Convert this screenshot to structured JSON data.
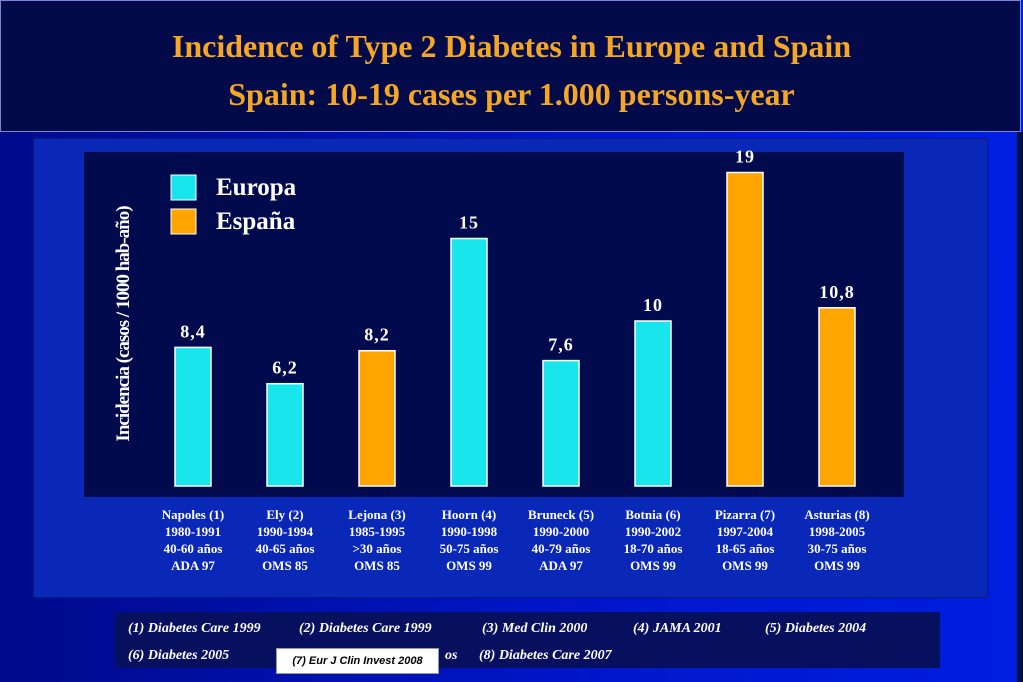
{
  "header": {
    "title_line1": "Incidence of Type 2 Diabetes in Europe and Spain",
    "title_line2": "Spain: 10-19 cases per 1.000 persons-year"
  },
  "chart_data": {
    "type": "bar",
    "ylabel": "Incidencia (casos / 1000 hab-año)",
    "ylim": [
      0,
      20
    ],
    "grid": false,
    "legend_position": "top-left",
    "series": [
      {
        "name": "Europa",
        "color": "#18e6ec"
      },
      {
        "name": "España",
        "color": "#ffa500"
      }
    ],
    "bars": [
      {
        "value": 8.4,
        "label": "8,4",
        "series": "Europa",
        "category": [
          "Napoles (1)",
          "1980-1991",
          "40-60 años",
          "ADA 97"
        ]
      },
      {
        "value": 6.2,
        "label": "6,2",
        "series": "Europa",
        "category": [
          "Ely (2)",
          "1990-1994",
          "40-65 años",
          "OMS 85"
        ]
      },
      {
        "value": 8.2,
        "label": "8,2",
        "series": "España",
        "category": [
          "Lejona (3)",
          "1985-1995",
          ">30 años",
          "OMS 85"
        ]
      },
      {
        "value": 15,
        "label": "15",
        "series": "Europa",
        "category": [
          "Hoorn (4)",
          "1990-1998",
          "50-75 años",
          "OMS 99"
        ]
      },
      {
        "value": 7.6,
        "label": "7,6",
        "series": "Europa",
        "category": [
          "Bruneck (5)",
          "1990-2000",
          "40-79 años",
          "ADA 97"
        ]
      },
      {
        "value": 10,
        "label": "10",
        "series": "Europa",
        "category": [
          "Botnia (6)",
          "1990-2002",
          "18-70 años",
          "OMS 99"
        ]
      },
      {
        "value": 19,
        "label": "19",
        "series": "España",
        "category": [
          "Pizarra (7)",
          "1997-2004",
          "18-65 años",
          "OMS 99"
        ]
      },
      {
        "value": 10.8,
        "label": "10,8",
        "series": "España",
        "category": [
          "Asturias (8)",
          "1998-2005",
          "30-75 años",
          "OMS 99"
        ]
      }
    ]
  },
  "references": {
    "r1": "(1) Diabetes Care 1999",
    "r2": "(2) Diabetes Care 1999",
    "r3": "(3) Med Clin 2000",
    "r4": "(4) JAMA 2001",
    "r5": "(5) Diabetes 2004",
    "r6": "(6) Diabetes 2005",
    "r7_tail": "os",
    "r8": "(8) Diabetes Care 2007",
    "overlay": "(7) Eur J Clin Invest 2008"
  }
}
